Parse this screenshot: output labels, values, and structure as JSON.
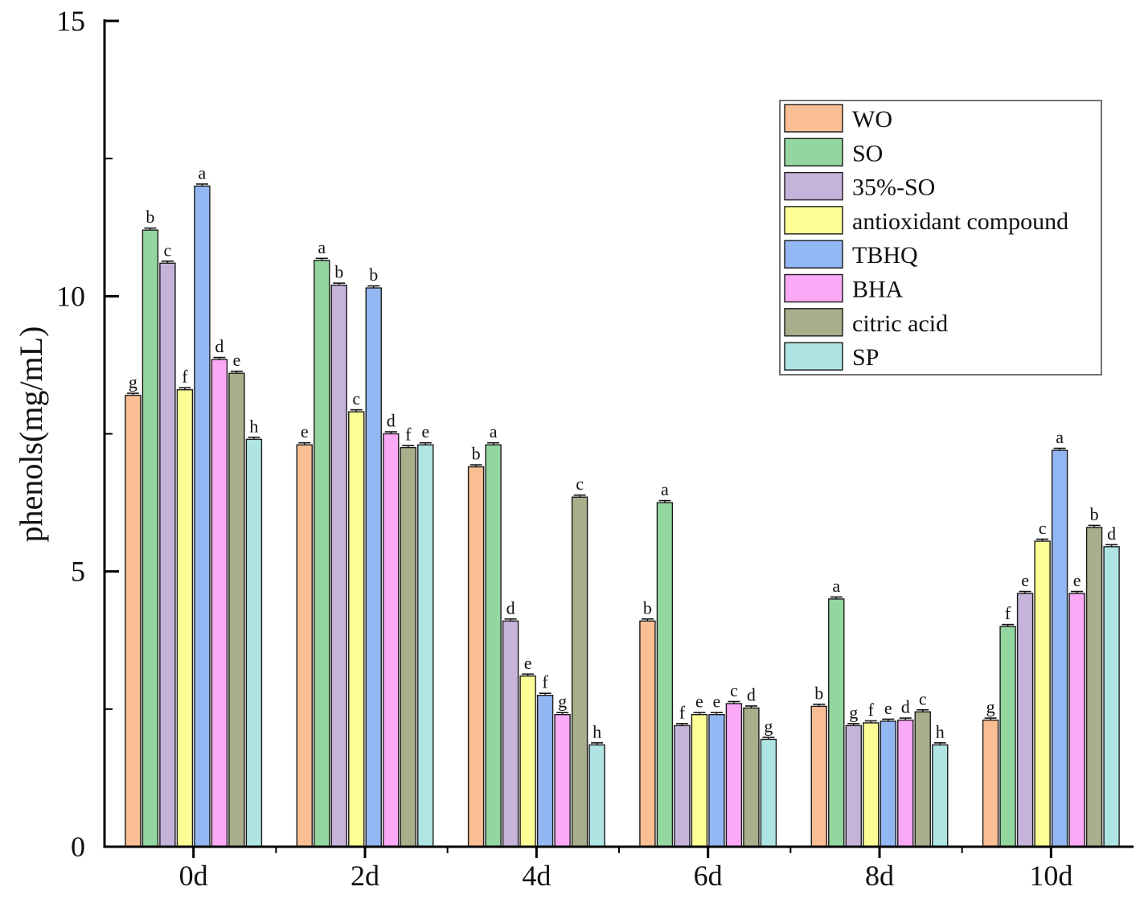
{
  "chart_data": {
    "type": "bar",
    "title": "",
    "xlabel": "",
    "ylabel": "phenols(mg/mL)",
    "ylim": [
      0,
      15
    ],
    "yticks": [
      0,
      5,
      10,
      15
    ],
    "grid": false,
    "legend_position": "top-right",
    "categories": [
      "0d",
      "2d",
      "4d",
      "6d",
      "8d",
      "10d"
    ],
    "series": [
      {
        "name": "WO",
        "color": "#F9BE93",
        "values": [
          8.2,
          7.3,
          6.9,
          4.1,
          2.55,
          2.3
        ],
        "labels": [
          "g",
          "e",
          "b",
          "b",
          "b",
          "g"
        ]
      },
      {
        "name": "SO",
        "color": "#94D6A0",
        "values": [
          11.2,
          10.65,
          7.3,
          6.25,
          4.5,
          4.0
        ],
        "labels": [
          "b",
          "a",
          "a",
          "a",
          "a",
          "f"
        ]
      },
      {
        "name": "35%-SO",
        "color": "#C5B3DA",
        "values": [
          10.6,
          10.2,
          4.1,
          2.2,
          2.2,
          4.6
        ],
        "labels": [
          "c",
          "b",
          "d",
          "f",
          "g",
          "e"
        ]
      },
      {
        "name": "antioxidant compound",
        "color": "#FDFD96",
        "values": [
          8.3,
          7.9,
          3.1,
          2.4,
          2.25,
          5.55
        ],
        "labels": [
          "f",
          "c",
          "e",
          "e",
          "f",
          "c"
        ]
      },
      {
        "name": "TBHQ",
        "color": "#92B7F2",
        "values": [
          12.0,
          10.15,
          2.75,
          2.4,
          2.28,
          7.2
        ],
        "labels": [
          "a",
          "b",
          "f",
          "e",
          "e",
          "a"
        ]
      },
      {
        "name": "BHA",
        "color": "#F9A9F5",
        "values": [
          8.85,
          7.5,
          2.4,
          2.6,
          2.3,
          4.6
        ],
        "labels": [
          "d",
          "d",
          "g",
          "c",
          "d",
          "e"
        ]
      },
      {
        "name": "citric acid",
        "color": "#A9AE8B",
        "values": [
          8.6,
          7.25,
          6.35,
          2.52,
          2.45,
          5.8
        ],
        "labels": [
          "e",
          "f",
          "c",
          "d",
          "c",
          "b"
        ]
      },
      {
        "name": "SP",
        "color": "#AEE4E4",
        "values": [
          7.4,
          7.3,
          1.85,
          1.95,
          1.85,
          5.45
        ],
        "labels": [
          "h",
          "e",
          "h",
          "g",
          "h",
          "d"
        ]
      }
    ]
  }
}
